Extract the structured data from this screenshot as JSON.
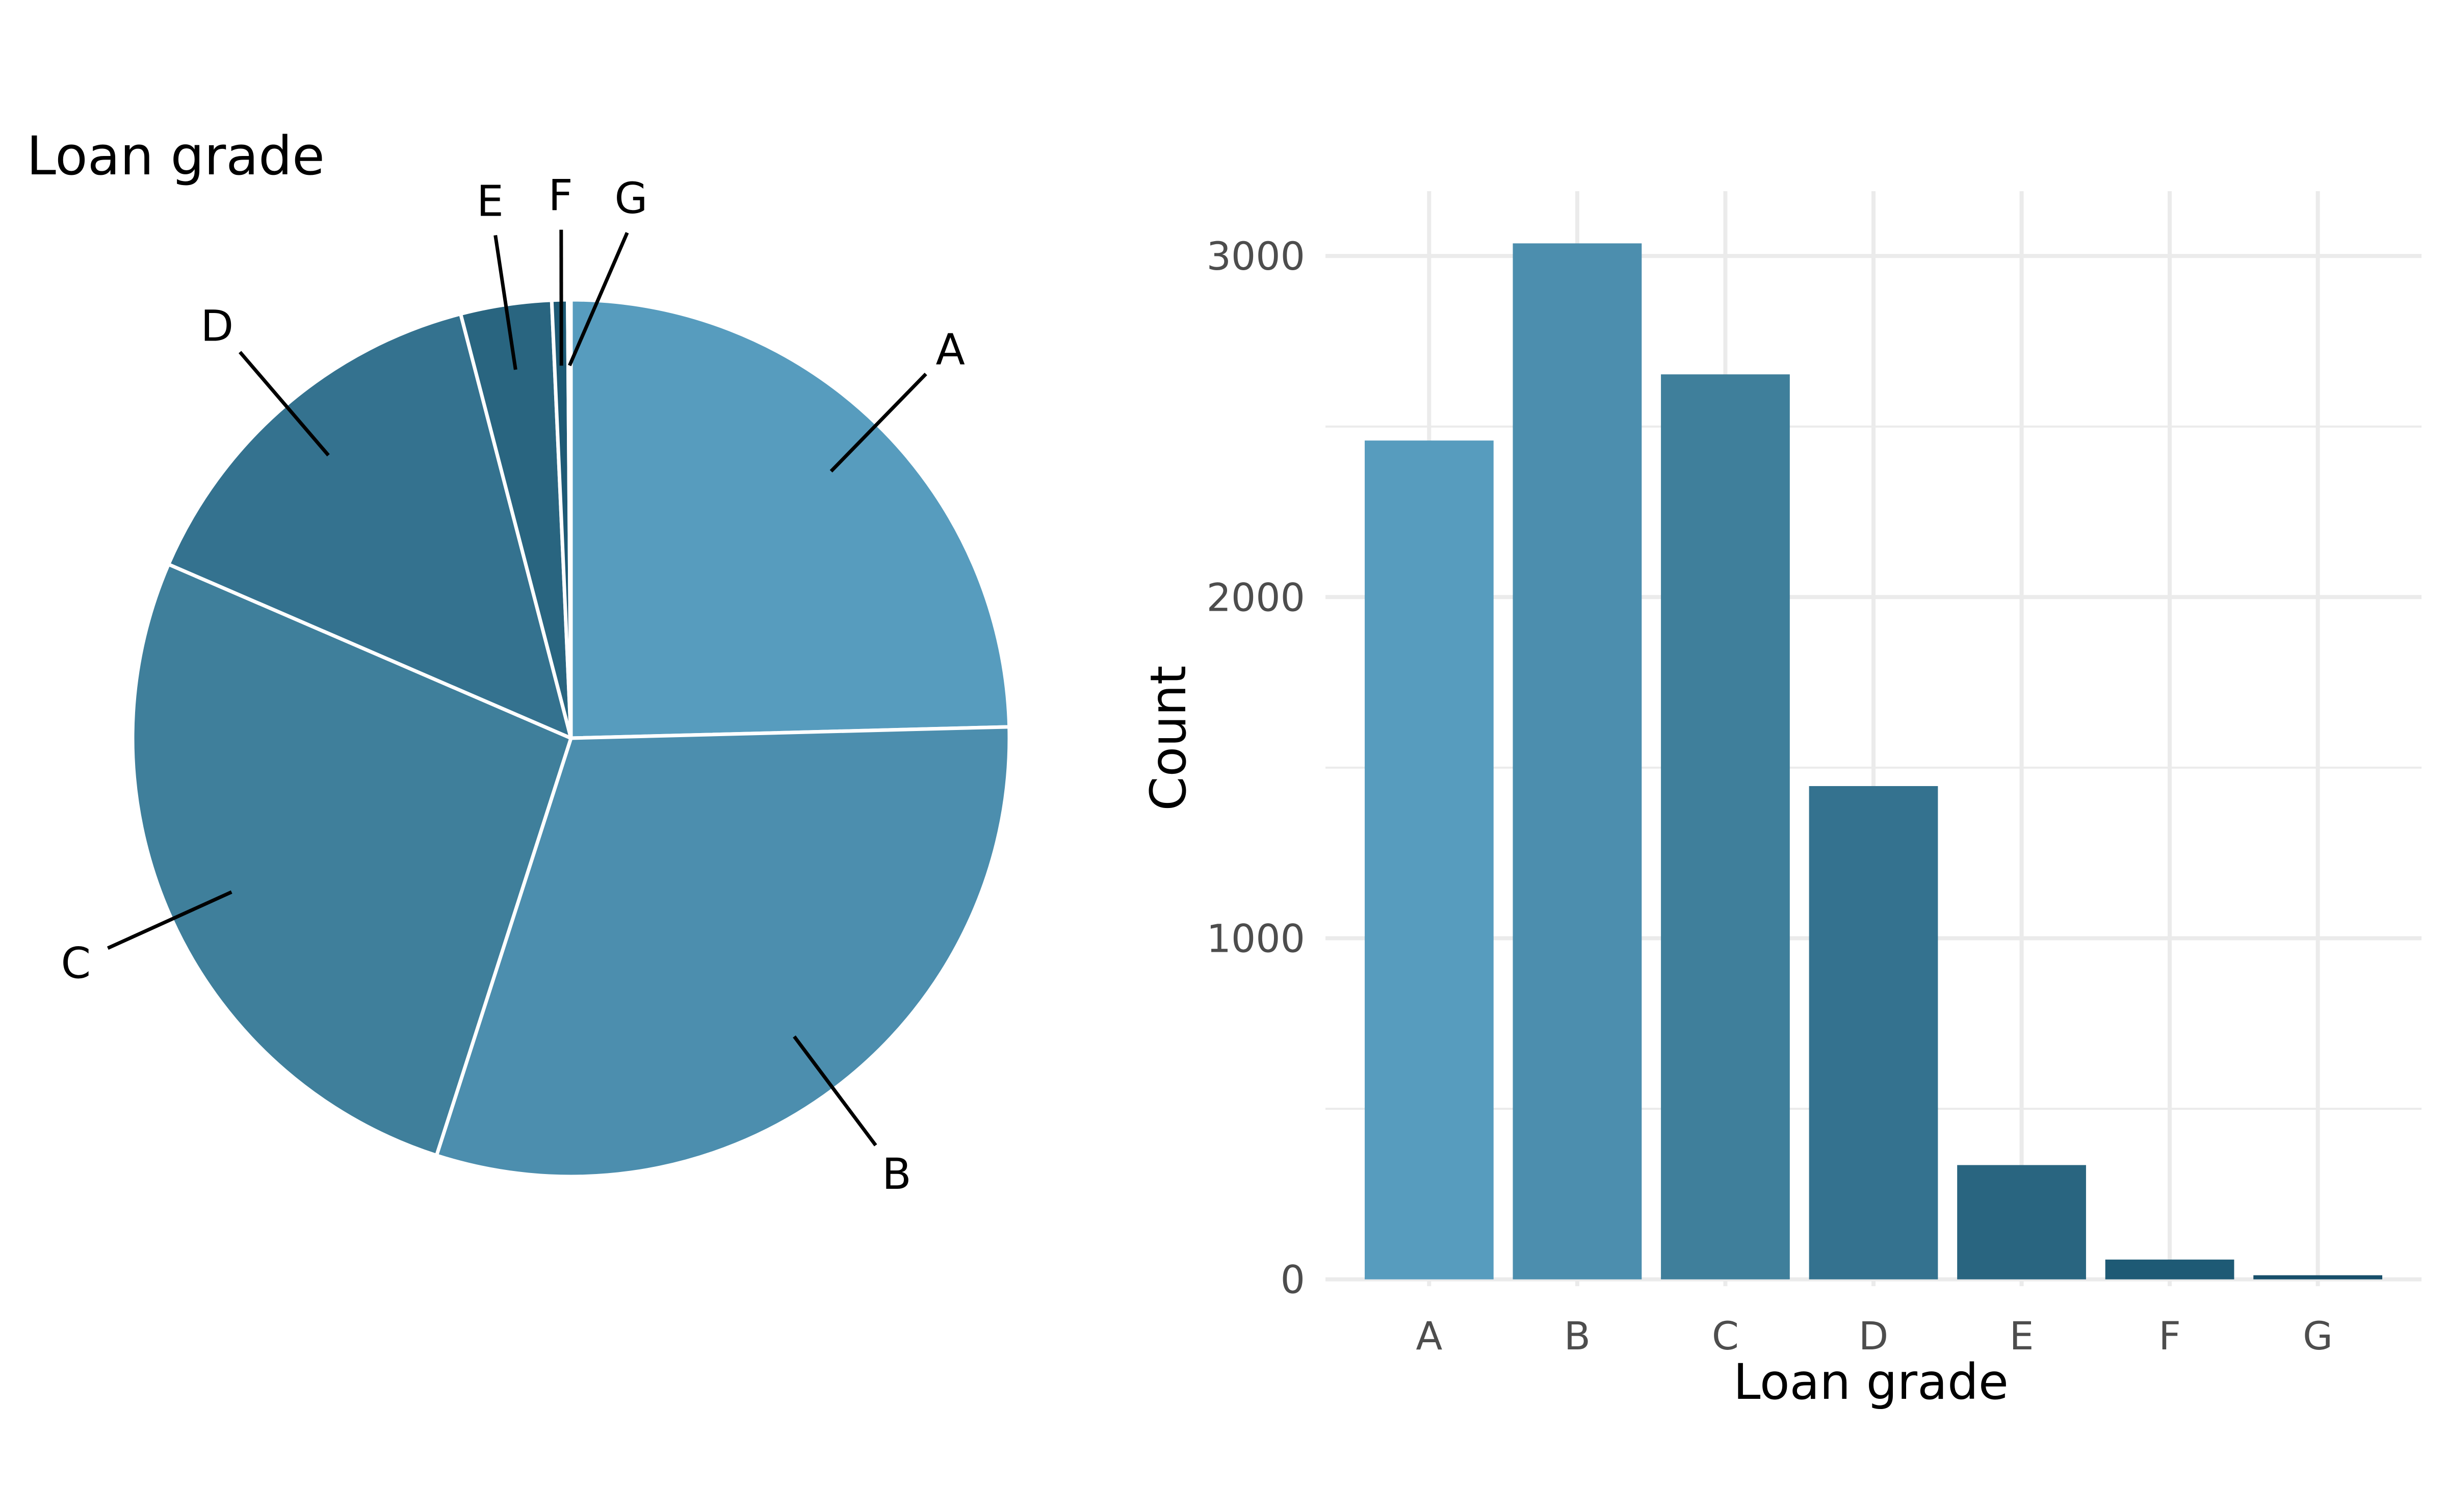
{
  "chart_data": [
    {
      "type": "pie",
      "title": "Loan grade",
      "slices": [
        {
          "label": "A",
          "value": 2459
        },
        {
          "label": "B",
          "value": 3037
        },
        {
          "label": "C",
          "value": 2653
        },
        {
          "label": "D",
          "value": 1446
        },
        {
          "label": "E",
          "value": 335
        },
        {
          "label": "F",
          "value": 58
        },
        {
          "label": "G",
          "value": 12
        }
      ],
      "colors": [
        "#579CBE",
        "#4C8EAE",
        "#3F7F9B",
        "#34728F",
        "#296580",
        "#1E5A75",
        "#174F6A"
      ],
      "slice_border": "#ffffff",
      "labels_outside_with_leaders": true
    },
    {
      "type": "bar",
      "categories": [
        "A",
        "B",
        "C",
        "D",
        "E",
        "F",
        "G"
      ],
      "values": [
        2459,
        3037,
        2653,
        1446,
        335,
        58,
        12
      ],
      "xlabel": "Loan grade",
      "ylabel": "Count",
      "ylim": [
        -20,
        3190
      ],
      "yticks": [
        0,
        1000,
        2000,
        3000
      ],
      "ytick_labels": [
        "0",
        "1000",
        "2000",
        "3000"
      ],
      "grid": true,
      "colors": [
        "#579CBE",
        "#4C8EAE",
        "#3F7F9B",
        "#34728F",
        "#296580",
        "#1E5A75",
        "#174F6A"
      ],
      "grid_color": "#EBEBEB"
    }
  ]
}
